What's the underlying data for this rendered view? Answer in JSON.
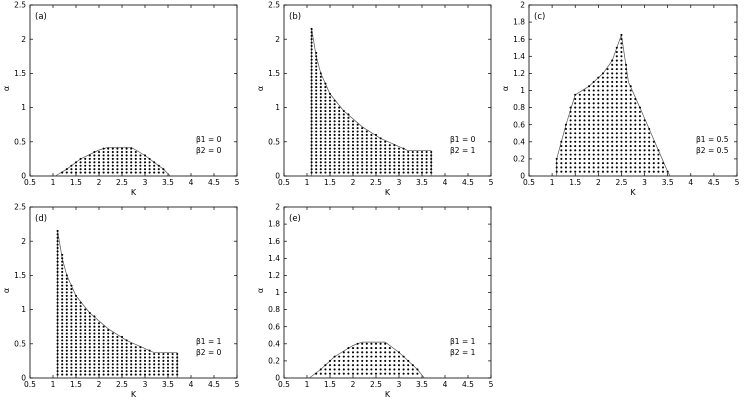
{
  "chart_data": [
    {
      "type": "scatter",
      "panel_label": "(a)",
      "xlabel": "K",
      "ylabel": "α",
      "xlim": [
        0.5,
        5
      ],
      "ylim": [
        0,
        2.5
      ],
      "xticks": [
        "0.5",
        "1",
        "1.5",
        "2",
        "2.5",
        "3",
        "3.5",
        "4",
        "4.5",
        "5"
      ],
      "yticks": [
        "0",
        "0.5",
        "1",
        "1.5",
        "2",
        "2.5"
      ],
      "params": [
        "β1 = 0",
        "β2 = 0"
      ],
      "boundary": [
        [
          1.05,
          0.0
        ],
        [
          1.3,
          0.1
        ],
        [
          1.6,
          0.25
        ],
        [
          2.0,
          0.38
        ],
        [
          2.2,
          0.42
        ],
        [
          2.7,
          0.42
        ],
        [
          3.0,
          0.3
        ],
        [
          3.4,
          0.1
        ],
        [
          3.55,
          0.0
        ]
      ],
      "dot_step": [
        0.1,
        0.05
      ]
    },
    {
      "type": "scatter",
      "panel_label": "(b)",
      "xlabel": "K",
      "ylabel": "α",
      "xlim": [
        0.5,
        5
      ],
      "ylim": [
        0,
        2.5
      ],
      "xticks": [
        "0.5",
        "1",
        "1.5",
        "2",
        "2.5",
        "3",
        "3.5",
        "4",
        "4.5",
        "5"
      ],
      "yticks": [
        "0",
        "0.5",
        "1",
        "1.5",
        "2",
        "2.5"
      ],
      "params": [
        "β1 = 0",
        "β2 = 1"
      ],
      "boundary": [
        [
          1.1,
          0.0
        ],
        [
          1.1,
          2.15
        ],
        [
          1.2,
          1.75
        ],
        [
          1.3,
          1.5
        ],
        [
          1.5,
          1.2
        ],
        [
          1.8,
          0.95
        ],
        [
          2.2,
          0.72
        ],
        [
          2.6,
          0.55
        ],
        [
          3.0,
          0.43
        ],
        [
          3.2,
          0.37
        ],
        [
          3.7,
          0.37
        ],
        [
          3.7,
          0.0
        ]
      ],
      "dot_step": [
        0.1,
        0.05
      ]
    },
    {
      "type": "scatter",
      "panel_label": "(c)",
      "xlabel": "K",
      "ylabel": "α",
      "xlim": [
        0.5,
        5
      ],
      "ylim": [
        0,
        2
      ],
      "xticks": [
        "0.5",
        "1",
        "1.5",
        "2",
        "2.5",
        "3",
        "3.5",
        "4",
        "4.5",
        "5"
      ],
      "yticks": [
        "0",
        "0.2",
        "0.4",
        "0.6",
        "0.8",
        "1",
        "1.2",
        "1.4",
        "1.6",
        "1.8",
        "2"
      ],
      "params": [
        "β1 = 0.5",
        "β2 = 0.5"
      ],
      "boundary": [
        [
          1.1,
          0.0
        ],
        [
          1.1,
          0.2
        ],
        [
          1.3,
          0.6
        ],
        [
          1.5,
          0.95
        ],
        [
          1.8,
          1.05
        ],
        [
          2.1,
          1.2
        ],
        [
          2.3,
          1.35
        ],
        [
          2.5,
          1.65
        ],
        [
          2.65,
          1.1
        ],
        [
          2.9,
          0.8
        ],
        [
          3.1,
          0.55
        ],
        [
          3.3,
          0.3
        ],
        [
          3.5,
          0.05
        ],
        [
          3.55,
          0.0
        ]
      ],
      "dot_step": [
        0.1,
        0.05
      ]
    },
    {
      "type": "scatter",
      "panel_label": "(d)",
      "xlabel": "K",
      "ylabel": "α",
      "xlim": [
        0.5,
        5
      ],
      "ylim": [
        0,
        2.5
      ],
      "xticks": [
        "0.5",
        "1",
        "1.5",
        "2",
        "2.5",
        "3",
        "3.5",
        "4",
        "4.5",
        "5"
      ],
      "yticks": [
        "0",
        "0.5",
        "1",
        "1.5",
        "2",
        "2.5"
      ],
      "params": [
        "β1 = 1",
        "β2 = 0"
      ],
      "boundary": [
        [
          1.1,
          0.0
        ],
        [
          1.1,
          2.15
        ],
        [
          1.2,
          1.75
        ],
        [
          1.3,
          1.5
        ],
        [
          1.5,
          1.2
        ],
        [
          1.8,
          0.95
        ],
        [
          2.2,
          0.72
        ],
        [
          2.6,
          0.55
        ],
        [
          3.0,
          0.43
        ],
        [
          3.2,
          0.37
        ],
        [
          3.7,
          0.37
        ],
        [
          3.7,
          0.0
        ]
      ],
      "dot_step": [
        0.1,
        0.05
      ]
    },
    {
      "type": "scatter",
      "panel_label": "(e)",
      "xlabel": "K",
      "ylabel": "α",
      "xlim": [
        0.5,
        5
      ],
      "ylim": [
        0,
        2
      ],
      "xticks": [
        "0.5",
        "1",
        "1.5",
        "2",
        "2.5",
        "3",
        "3.5",
        "4",
        "4.5",
        "5"
      ],
      "yticks": [
        "0",
        "0.2",
        "0.4",
        "0.6",
        "0.8",
        "1",
        "1.2",
        "1.4",
        "1.6",
        "1.8",
        "2"
      ],
      "params": [
        "β1 = 1",
        "β2 = 1"
      ],
      "boundary": [
        [
          1.05,
          0.0
        ],
        [
          1.3,
          0.1
        ],
        [
          1.6,
          0.25
        ],
        [
          2.0,
          0.38
        ],
        [
          2.2,
          0.42
        ],
        [
          2.7,
          0.42
        ],
        [
          3.0,
          0.3
        ],
        [
          3.4,
          0.1
        ],
        [
          3.55,
          0.0
        ]
      ],
      "dot_step": [
        0.1,
        0.05
      ]
    }
  ]
}
